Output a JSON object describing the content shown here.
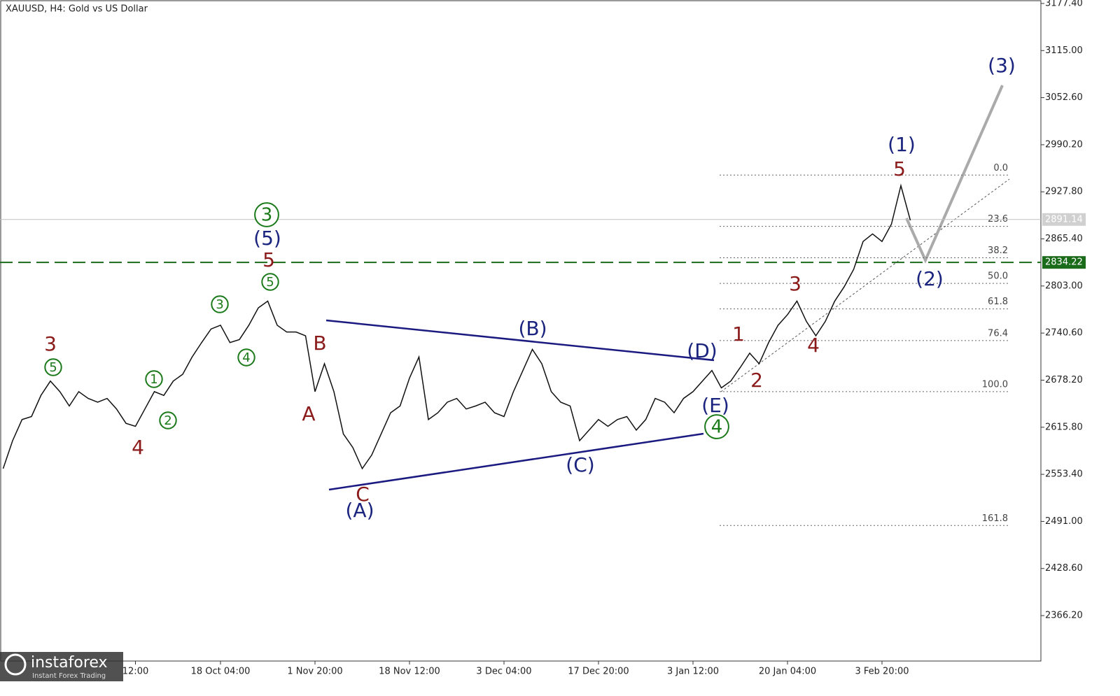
{
  "chart_data": {
    "type": "line",
    "title": "XAUUSD, H4:  Gold vs US Dollar",
    "categories": [
      null,
      null,
      null,
      null,
      null,
      null,
      null,
      null,
      null,
      null,
      null,
      null,
      null,
      null,
      "12:00",
      null,
      null,
      null,
      null,
      null,
      null,
      null,
      null,
      "18 Oct 04:00",
      null,
      null,
      null,
      null,
      null,
      null,
      null,
      null,
      null,
      "1 Nov 20:00",
      null,
      null,
      null,
      null,
      null,
      null,
      null,
      null,
      null,
      "18 Nov 12:00",
      null,
      null,
      null,
      null,
      null,
      null,
      null,
      null,
      null,
      "3 Dec 04:00",
      null,
      null,
      null,
      null,
      null,
      null,
      null,
      null,
      null,
      "17 Dec 20:00",
      null,
      null,
      null,
      null,
      null,
      null,
      null,
      null,
      null,
      "3 Jan 12:00",
      null,
      null,
      null,
      null,
      null,
      null,
      null,
      null,
      null,
      "20 Jan 04:00",
      null,
      null,
      null,
      null,
      null,
      null,
      null,
      null,
      null,
      "3 Feb 20:00",
      null,
      null,
      null
    ],
    "series": [
      {
        "name": "XAUUSD",
        "color": "#111111",
        "values": [
          2561,
          2598,
          2626,
          2630,
          2658,
          2677,
          2663,
          2644,
          2663,
          2654,
          2649,
          2654,
          2640,
          2621,
          2617,
          2640,
          2663,
          2658,
          2677,
          2686,
          2709,
          2728,
          2746,
          2751,
          2728,
          2732,
          2751,
          2774,
          2783,
          2751,
          2742,
          2742,
          2737,
          2663,
          2700,
          2663,
          2607,
          2589,
          2561,
          2579,
          2607,
          2635,
          2644,
          2681,
          2709,
          2626,
          2635,
          2649,
          2654,
          2640,
          2644,
          2649,
          2635,
          2630,
          2663,
          2691,
          2719,
          2700,
          2663,
          2649,
          2644,
          2598,
          2612,
          2626,
          2617,
          2626,
          2630,
          2612,
          2626,
          2654,
          2649,
          2635,
          2654,
          2663,
          2677,
          2691,
          2668,
          2677,
          2695,
          2714,
          2700,
          2728,
          2751,
          2765,
          2783,
          2756,
          2737,
          2756,
          2783,
          2802,
          2825,
          2862,
          2872,
          2862,
          2885,
          2936,
          2890
        ]
      }
    ],
    "ylim": [
      2306,
      3182
    ],
    "yticks": [
      {
        "value": 3177.4,
        "label": "3177.40"
      },
      {
        "value": 3115,
        "label": "3115.00"
      },
      {
        "value": 3052.6,
        "label": "3052.60"
      },
      {
        "value": 2990.2,
        "label": "2990.20"
      },
      {
        "value": 2927.8,
        "label": "2927.80"
      },
      {
        "value": 2865.4,
        "label": "2865.40"
      },
      {
        "value": 2803,
        "label": "2803.00"
      },
      {
        "value": 2740.6,
        "label": "2740.60"
      },
      {
        "value": 2678.2,
        "label": "2678.20"
      },
      {
        "value": 2615.8,
        "label": "2615.80"
      },
      {
        "value": 2553.4,
        "label": "2553.40"
      },
      {
        "value": 2491,
        "label": "2491.00"
      },
      {
        "value": 2428.6,
        "label": "2428.60"
      },
      {
        "value": 2366.2,
        "label": "2366.20"
      }
    ],
    "current_price": 2891.14,
    "level": 2834.22,
    "level_color": "#1a6b1a",
    "fib_levels": [
      {
        "value": 2950,
        "label": "0.0"
      },
      {
        "value": 2882,
        "label": "23.6"
      },
      {
        "value": 2840.4,
        "label": "38.2"
      },
      {
        "value": 2806.5,
        "label": "50.0"
      },
      {
        "value": 2772.6,
        "label": "61.8"
      },
      {
        "value": 2730.7,
        "label": "76.4"
      },
      {
        "value": 2663,
        "label": "100.0"
      },
      {
        "value": 2485.6,
        "label": "161.8"
      }
    ],
    "annotations": [
      {
        "text": "3",
        "color": "#8b1a1a"
      },
      {
        "text": "5",
        "color": "#1a7a1a",
        "circled": true
      },
      {
        "text": "4",
        "color": "#8b1a1a"
      },
      {
        "text": "1",
        "color": "#1a7a1a",
        "circled": true
      },
      {
        "text": "2",
        "color": "#1a7a1a",
        "circled": true
      },
      {
        "text": "3",
        "color": "#1a7a1a",
        "circled": true
      },
      {
        "text": "4",
        "color": "#1a7a1a",
        "circled": true
      },
      {
        "text": "3",
        "color": "#1a7a1a",
        "circled": true
      },
      {
        "text": "(5)",
        "color": "#1a237e"
      },
      {
        "text": "5",
        "color": "#8b1a1a"
      },
      {
        "text": "5",
        "color": "#1a7a1a",
        "circled": true
      },
      {
        "text": "B",
        "color": "#8b1a1a"
      },
      {
        "text": "A",
        "color": "#8b1a1a"
      },
      {
        "text": "C",
        "color": "#8b1a1a"
      },
      {
        "text": "(A)",
        "color": "#1a237e"
      },
      {
        "text": "(B)",
        "color": "#1a237e"
      },
      {
        "text": "(C)",
        "color": "#1a237e"
      },
      {
        "text": "(D)",
        "color": "#1a237e"
      },
      {
        "text": "(E)",
        "color": "#1a237e"
      },
      {
        "text": "4",
        "color": "#1a7a1a",
        "circled": true
      },
      {
        "text": "1",
        "color": "#8b1a1a"
      },
      {
        "text": "2",
        "color": "#8b1a1a"
      },
      {
        "text": "3",
        "color": "#8b1a1a"
      },
      {
        "text": "4",
        "color": "#8b1a1a"
      },
      {
        "text": "5",
        "color": "#8b1a1a"
      },
      {
        "text": "(1)",
        "color": "#1a237e"
      },
      {
        "text": "(2)",
        "color": "#1a237e"
      },
      {
        "text": "(3)",
        "color": "#1a237e"
      }
    ],
    "brand": {
      "name": "instaforex",
      "tagline": "Instant Forex Trading"
    }
  }
}
